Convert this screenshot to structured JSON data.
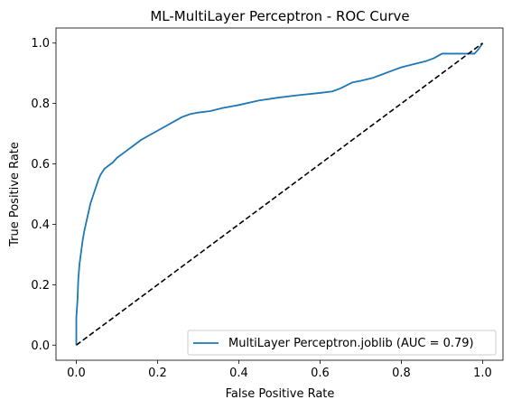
{
  "chart_data": {
    "type": "line",
    "title": "ML-MultiLayer Perceptron - ROC Curve",
    "xlabel": "False Positive Rate",
    "ylabel": "True Positive Rate",
    "xlim": [
      -0.05,
      1.05
    ],
    "ylim": [
      -0.05,
      1.05
    ],
    "xticks": [
      0.0,
      0.2,
      0.4,
      0.6,
      0.8,
      1.0
    ],
    "xtick_labels": [
      "0.0",
      "0.2",
      "0.4",
      "0.6",
      "0.8",
      "1.0"
    ],
    "yticks": [
      0.0,
      0.2,
      0.4,
      0.6,
      0.8,
      1.0
    ],
    "ytick_labels": [
      "0.0",
      "0.2",
      "0.4",
      "0.6",
      "0.8",
      "1.0"
    ],
    "grid": false,
    "legend_position": "lower-right",
    "series": [
      {
        "name": "MultiLayer Perceptron.joblib (AUC = 0.79)",
        "color": "#1f77b4",
        "style": "solid",
        "x": [
          0.0,
          0.0,
          0.003,
          0.005,
          0.008,
          0.012,
          0.016,
          0.02,
          0.025,
          0.03,
          0.035,
          0.04,
          0.045,
          0.05,
          0.055,
          0.06,
          0.065,
          0.07,
          0.08,
          0.09,
          0.1,
          0.12,
          0.14,
          0.16,
          0.18,
          0.2,
          0.22,
          0.24,
          0.26,
          0.28,
          0.3,
          0.33,
          0.36,
          0.4,
          0.45,
          0.5,
          0.55,
          0.6,
          0.63,
          0.65,
          0.68,
          0.7,
          0.73,
          0.75,
          0.78,
          0.8,
          0.83,
          0.86,
          0.88,
          0.9,
          0.93,
          0.95,
          0.98,
          0.99,
          1.0
        ],
        "y": [
          0.0,
          0.09,
          0.15,
          0.22,
          0.27,
          0.31,
          0.35,
          0.38,
          0.41,
          0.44,
          0.47,
          0.49,
          0.51,
          0.53,
          0.55,
          0.565,
          0.575,
          0.585,
          0.595,
          0.605,
          0.62,
          0.64,
          0.66,
          0.68,
          0.695,
          0.71,
          0.725,
          0.74,
          0.755,
          0.765,
          0.77,
          0.775,
          0.785,
          0.795,
          0.81,
          0.82,
          0.828,
          0.835,
          0.84,
          0.85,
          0.87,
          0.875,
          0.885,
          0.895,
          0.91,
          0.92,
          0.93,
          0.94,
          0.95,
          0.965,
          0.965,
          0.965,
          0.965,
          0.98,
          1.0
        ]
      },
      {
        "name": "",
        "color": "#000000",
        "style": "dashed",
        "x": [
          0.0,
          1.0
        ],
        "y": [
          0.0,
          1.0
        ]
      }
    ]
  }
}
